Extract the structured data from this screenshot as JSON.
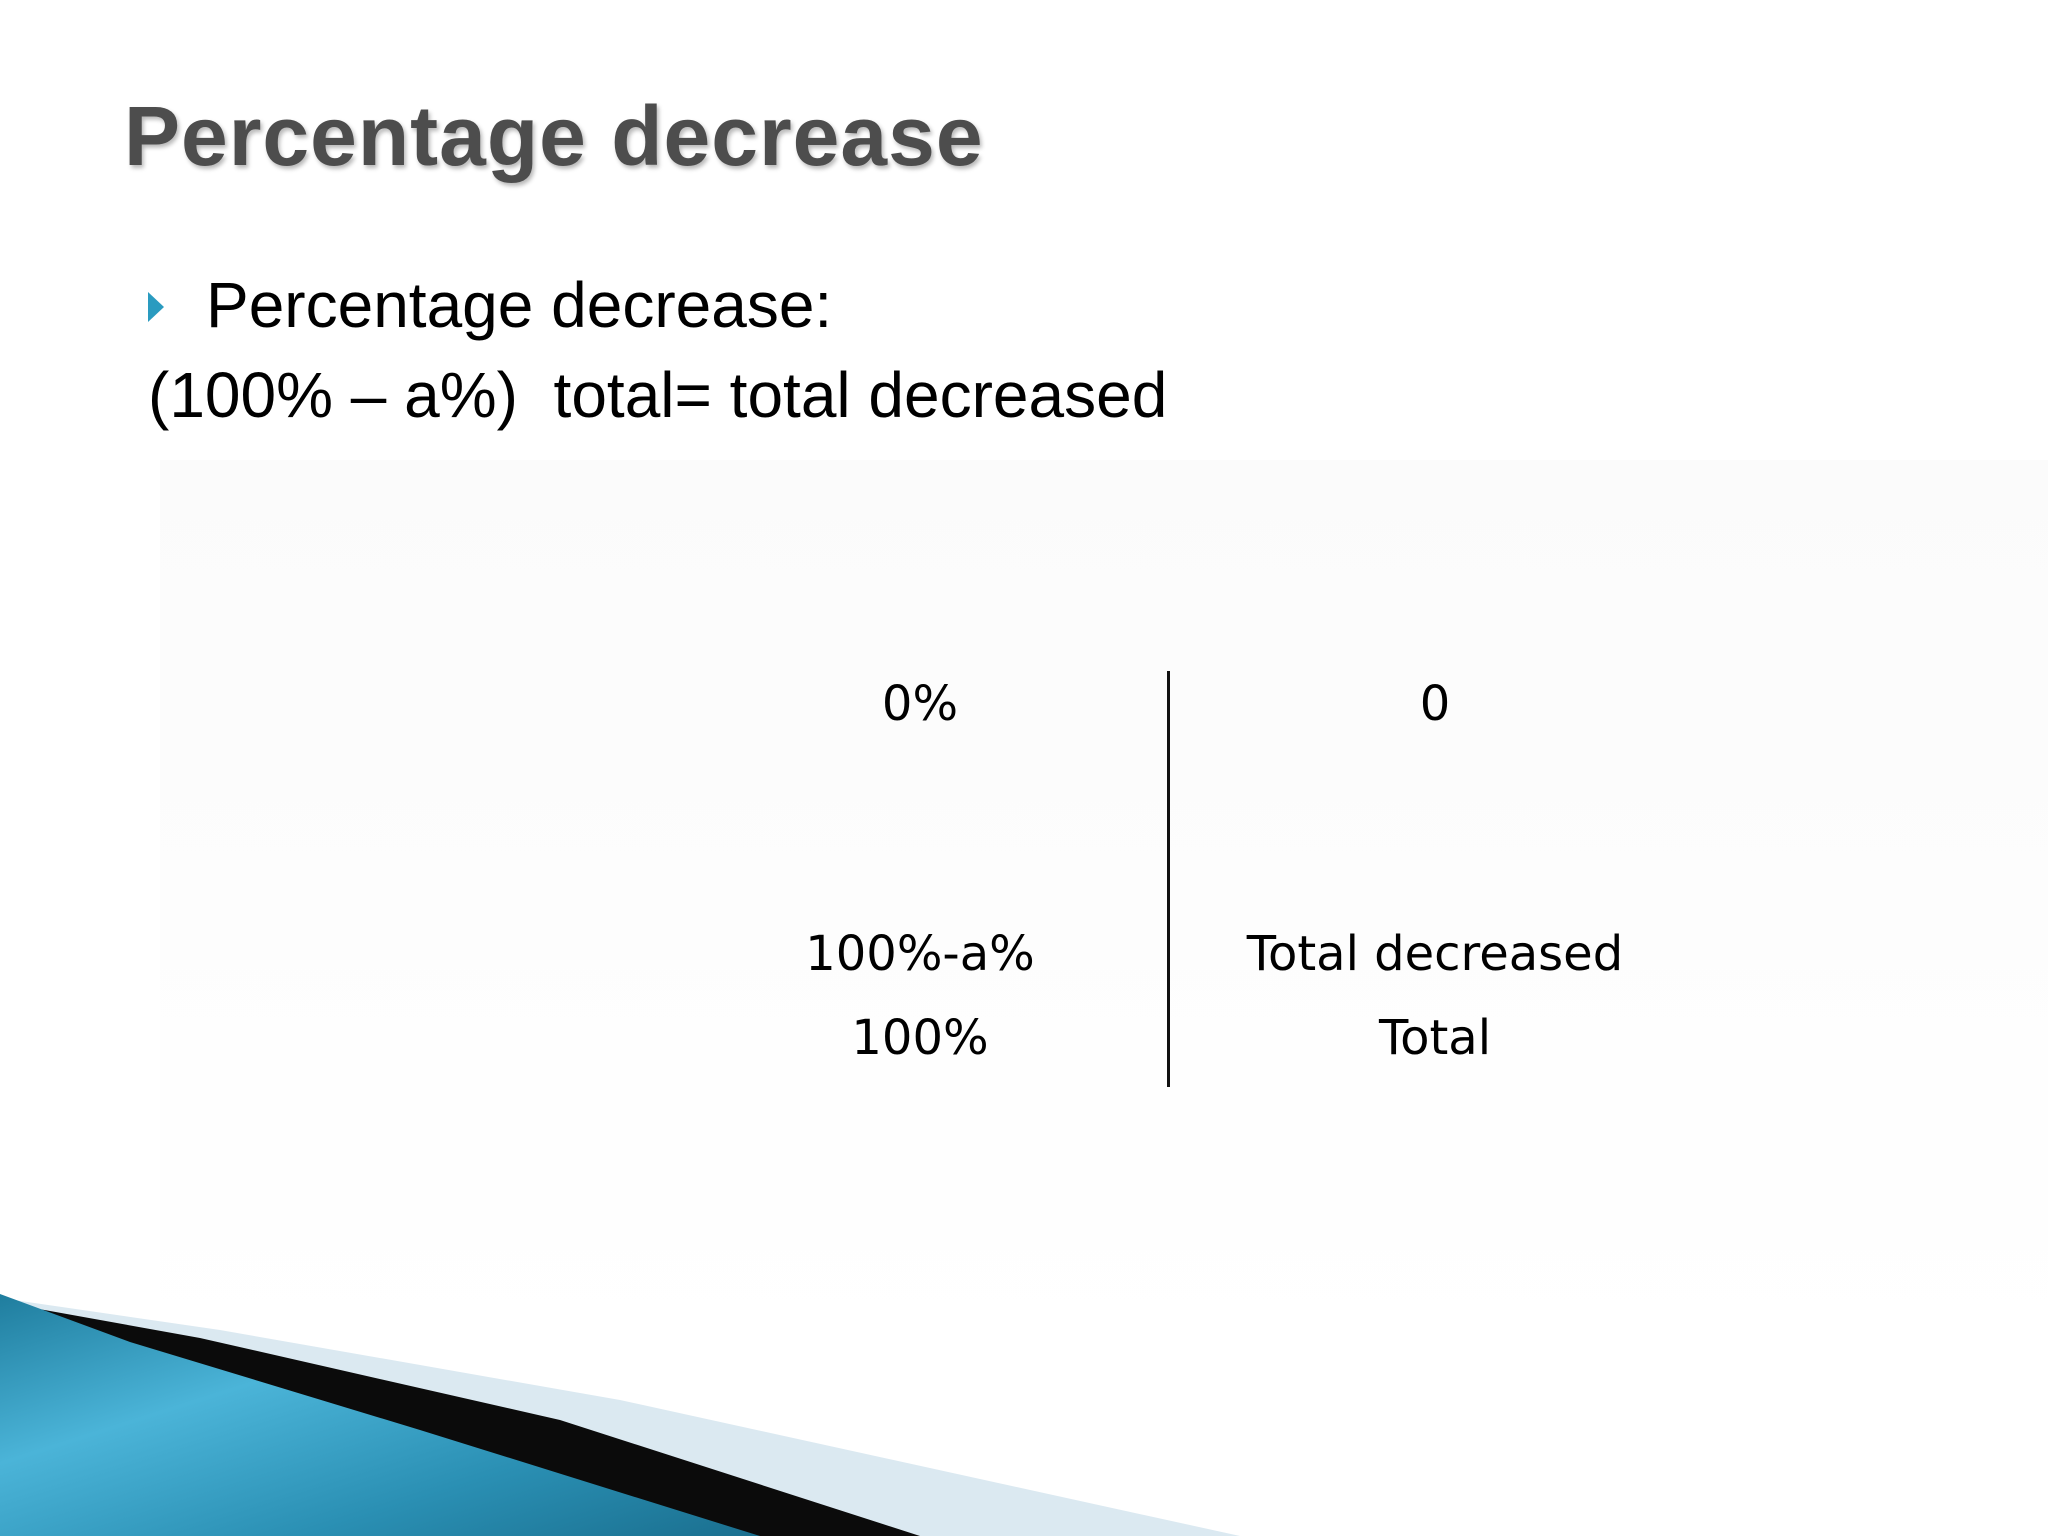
{
  "slide": {
    "title": "Percentage decrease",
    "bullet_text": "Percentage decrease:",
    "formula": "(100% – a%)  total= total decreased",
    "accent_color": "#2a9bc0",
    "bullet_icon": "triangle-right-icon"
  },
  "proportion_table": {
    "left_column": {
      "top": "0%",
      "middle": "100%-a%",
      "bottom": "100%"
    },
    "right_column": {
      "top": "0",
      "middle": "Total decreased",
      "bottom": "Total"
    }
  }
}
